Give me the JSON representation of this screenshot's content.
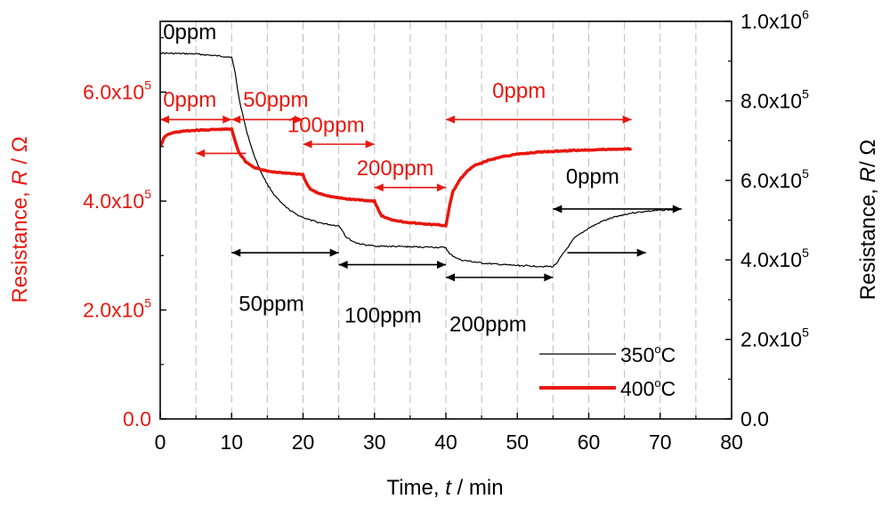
{
  "chart_data": {
    "type": "line",
    "xlabel_main": "Time, ",
    "xlabel_var": "t",
    "xlabel_unit": " / min",
    "ylabel_left_main": "Resistance, ",
    "ylabel_left_var": "R",
    "ylabel_left_unit": " / Ω",
    "ylabel_right_main": "Resistance, ",
    "ylabel_right_var": "R",
    "ylabel_right_unit": "/ Ω",
    "xlim": [
      0,
      80
    ],
    "ylim_left": [
      0,
      730000
    ],
    "ylim_right": [
      0,
      1000000
    ],
    "x_ticks": [
      "0",
      "10",
      "20",
      "30",
      "40",
      "50",
      "60",
      "70",
      "80"
    ],
    "x_tick_values": [
      0,
      10,
      20,
      30,
      40,
      50,
      60,
      70,
      80
    ],
    "left_ticks": [
      {
        "value": 0,
        "base": "0.0",
        "exp": ""
      },
      {
        "value": 200000,
        "base": "2.0x10",
        "exp": "5"
      },
      {
        "value": 400000,
        "base": "4.0x10",
        "exp": "5"
      },
      {
        "value": 600000,
        "base": "6.0x10",
        "exp": "5"
      }
    ],
    "right_ticks": [
      {
        "value": 0,
        "base": "0.0",
        "exp": ""
      },
      {
        "value": 200000,
        "base": "2.0x10",
        "exp": "5"
      },
      {
        "value": 400000,
        "base": "4.0x10",
        "exp": "5"
      },
      {
        "value": 600000,
        "base": "6.0x10",
        "exp": "5"
      },
      {
        "value": 800000,
        "base": "8.0x10",
        "exp": "5"
      },
      {
        "value": 1000000,
        "base": "1.0x10",
        "exp": "6"
      }
    ],
    "grid_x": [
      5,
      10,
      15,
      20,
      25,
      30,
      35,
      40,
      45,
      50,
      55,
      60,
      65,
      70,
      75
    ],
    "series": [
      {
        "name": "350",
        "legend_unit": "C",
        "legend_deg": "o",
        "axis": "right",
        "color": "#000000",
        "width": 1.2,
        "x": [
          0,
          5,
          10,
          10.5,
          11,
          12,
          13,
          14,
          15,
          16,
          17,
          18,
          19,
          20,
          21,
          22,
          23,
          24,
          25,
          25.5,
          26,
          27,
          28,
          29,
          30,
          32,
          35,
          38,
          40,
          40.5,
          42,
          45,
          48,
          50,
          53,
          55,
          55.5,
          56,
          57,
          58,
          60,
          62,
          64,
          66,
          68,
          70,
          72.5
        ],
        "values": [
          920000,
          918000,
          910000,
          870000,
          810000,
          730000,
          670000,
          625000,
          590000,
          563000,
          542000,
          527000,
          515000,
          507000,
          500000,
          495000,
          491000,
          488000,
          486000,
          475000,
          458000,
          446000,
          440000,
          437000,
          435000,
          434000,
          433000,
          432000,
          431000,
          415000,
          400000,
          392000,
          388000,
          386000,
          384000,
          383000,
          392000,
          405000,
          430000,
          455000,
          480000,
          498000,
          510000,
          518000,
          522000,
          525000,
          527000
        ]
      },
      {
        "name": "400",
        "legend_unit": "C",
        "legend_deg": "o",
        "axis": "left",
        "color": "#e8170f",
        "width": 3.5,
        "x": [
          0,
          0.5,
          1,
          2,
          3,
          5,
          7,
          9,
          10,
          10.5,
          11,
          12,
          13,
          14,
          15,
          17,
          19,
          20,
          20.5,
          21,
          22,
          24,
          26,
          28,
          30,
          30.5,
          31,
          32,
          34,
          36,
          38,
          40,
          40.5,
          41,
          42,
          43,
          44,
          46,
          48,
          50,
          53,
          56,
          60,
          63,
          66
        ],
        "values": [
          500000,
          515000,
          522000,
          526000,
          528000,
          530000,
          531000,
          532000,
          532000,
          510000,
          490000,
          472000,
          463000,
          458000,
          455000,
          452000,
          450000,
          448000,
          432000,
          422000,
          415000,
          408000,
          404000,
          402000,
          400000,
          385000,
          373000,
          367000,
          362000,
          359000,
          357000,
          355000,
          390000,
          418000,
          440000,
          455000,
          465000,
          475000,
          482000,
          486000,
          490000,
          492000,
          494000,
          495000,
          496000
        ]
      }
    ],
    "annotations": [
      {
        "text": "0ppm",
        "x": 0.4,
        "right_y": 955000,
        "axis": "right",
        "color": "#000000"
      },
      {
        "text": "50ppm",
        "x": 11,
        "right_y": 272000,
        "axis": "right",
        "color": "#000000"
      },
      {
        "text": "100ppm",
        "x": 25.8,
        "right_y": 243000,
        "axis": "right",
        "color": "#000000"
      },
      {
        "text": "200ppm",
        "x": 40.5,
        "right_y": 220000,
        "axis": "right",
        "color": "#000000"
      },
      {
        "text": "0ppm",
        "x": 56.8,
        "right_y": 592000,
        "axis": "right",
        "color": "#000000"
      },
      {
        "text": "0ppm",
        "x": 0.4,
        "right_y": 785000,
        "axis": "right",
        "color": "#e8170f"
      },
      {
        "text": "50ppm",
        "x": 11.6,
        "right_y": 785000,
        "axis": "right",
        "color": "#e8170f"
      },
      {
        "text": "100ppm",
        "x": 17.8,
        "right_y": 722000,
        "axis": "right",
        "color": "#e8170f"
      },
      {
        "text": "200ppm",
        "x": 27.5,
        "right_y": 613000,
        "axis": "right",
        "color": "#e8170f"
      },
      {
        "text": "0ppm",
        "x": 46.5,
        "right_y": 808000,
        "axis": "right",
        "color": "#e8170f"
      }
    ],
    "arrows": [
      {
        "x1": 0,
        "x2": 10,
        "right_y": 753000,
        "color": "#e8170f",
        "heads": "both"
      },
      {
        "x1": 10,
        "x2": 20,
        "right_y": 753000,
        "color": "#e8170f",
        "heads": "both"
      },
      {
        "x1": 5,
        "x2": 12,
        "right_y": 668000,
        "color": "#e8170f",
        "heads": "start"
      },
      {
        "x1": 20,
        "x2": 30,
        "right_y": 691000,
        "color": "#e8170f",
        "heads": "both"
      },
      {
        "x1": 30,
        "x2": 40,
        "right_y": 582000,
        "color": "#e8170f",
        "heads": "both"
      },
      {
        "x1": 40,
        "x2": 66,
        "right_y": 753000,
        "color": "#e8170f",
        "heads": "both"
      },
      {
        "x1": 10,
        "x2": 25,
        "right_y": 418000,
        "color": "#000000",
        "heads": "both"
      },
      {
        "x1": 25,
        "x2": 40,
        "right_y": 388000,
        "color": "#000000",
        "heads": "both"
      },
      {
        "x1": 40,
        "x2": 55,
        "right_y": 356000,
        "color": "#000000",
        "heads": "both"
      },
      {
        "x1": 55,
        "x2": 73,
        "right_y": 528000,
        "color": "#000000",
        "heads": "both"
      },
      {
        "x1": 57,
        "x2": 68,
        "right_y": 418000,
        "color": "#000000",
        "heads": "end"
      }
    ],
    "legend_position": "bottom-right",
    "grid": "vertical dashed"
  }
}
